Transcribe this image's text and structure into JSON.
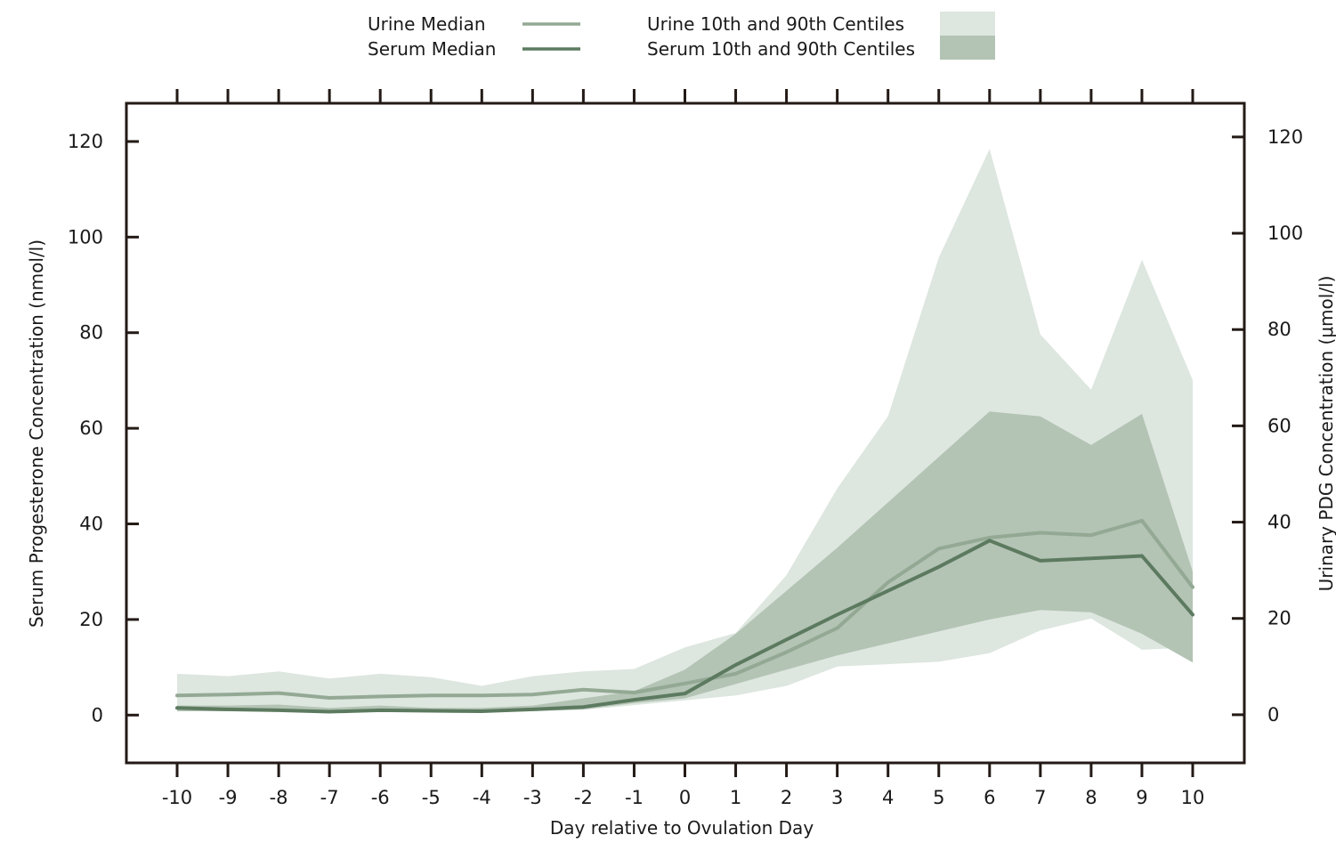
{
  "chart_data": {
    "type": "line",
    "title": "",
    "xlabel": "Day relative to Ovulation Day",
    "ylabel_left": "Serum Progesterone Concentration (nmol/l)",
    "ylabel_right": "Urinary PDG Concentration (μmol/l)",
    "x": [
      -10,
      -9,
      -8,
      -7,
      -6,
      -5,
      -4,
      -3,
      -2,
      -1,
      0,
      1,
      2,
      3,
      4,
      5,
      6,
      7,
      8,
      9,
      10
    ],
    "x_tick_labels": [
      "-10",
      "-9",
      "-8",
      "-7",
      "-6",
      "-5",
      "-4",
      "-3",
      "-2",
      "-1",
      "0",
      "1",
      "2",
      "3",
      "4",
      "5",
      "6",
      "7",
      "8",
      "9",
      "10"
    ],
    "ylim": [
      -10,
      128
    ],
    "y_ticks": [
      0,
      20,
      40,
      60,
      80,
      100,
      120
    ],
    "y_tick_labels": [
      "0",
      "20",
      "40",
      "60",
      "80",
      "100",
      "120"
    ],
    "ylim_right": [
      -10,
      127
    ],
    "y_ticks_right": [
      0,
      20,
      40,
      60,
      80,
      100,
      120
    ],
    "y_tick_labels_right": [
      "0",
      "20",
      "40",
      "60",
      "80",
      "100",
      "120"
    ],
    "grid": false,
    "legend_position": "top-center",
    "series": [
      {
        "name": "Urine Median",
        "kind": "line",
        "axis": "right",
        "color": "#93a994",
        "values": [
          4.0,
          4.2,
          4.5,
          3.5,
          3.8,
          4.0,
          4.0,
          4.2,
          5.2,
          4.6,
          6.5,
          8.5,
          13.0,
          18.0,
          27.5,
          34.5,
          36.8,
          37.8,
          37.3,
          40.3,
          26.5
        ]
      },
      {
        "name": "Serum Median",
        "kind": "line",
        "axis": "left",
        "color": "#5c7a5f",
        "values": [
          1.5,
          1.2,
          1.0,
          0.7,
          1.0,
          0.9,
          0.8,
          1.2,
          1.7,
          3.2,
          4.5,
          10.5,
          15.8,
          21.0,
          26.0,
          31.0,
          36.5,
          32.3,
          32.8,
          33.3,
          21.0
        ]
      },
      {
        "name": "Urine 10th and 90th Centiles",
        "kind": "band",
        "axis": "right",
        "color": "#dde6df",
        "lower": [
          1.0,
          1.0,
          1.0,
          0.8,
          0.8,
          0.8,
          0.8,
          0.8,
          1.0,
          2.0,
          3.0,
          4.0,
          6.0,
          10.0,
          10.5,
          11.0,
          12.8,
          17.5,
          20.0,
          13.5,
          14.0
        ],
        "upper": [
          8.5,
          8.0,
          9.0,
          7.5,
          8.5,
          7.8,
          6.0,
          8.0,
          9.0,
          9.5,
          14.0,
          17.0,
          29.0,
          47.0,
          62.0,
          95.0,
          117.5,
          79.0,
          67.5,
          94.5,
          69.5
        ]
      },
      {
        "name": "Serum 10th and 90th Centiles",
        "kind": "band",
        "axis": "left",
        "color": "#b3c3b4",
        "lower": [
          0.8,
          0.8,
          0.7,
          0.5,
          0.7,
          0.7,
          0.6,
          0.8,
          1.2,
          2.5,
          3.5,
          6.5,
          9.5,
          12.5,
          15.0,
          17.5,
          20.0,
          22.0,
          21.5,
          17.0,
          11.0
        ],
        "upper": [
          2.0,
          2.0,
          2.2,
          1.5,
          2.0,
          1.5,
          1.5,
          2.0,
          3.5,
          5.0,
          9.5,
          17.0,
          26.0,
          35.0,
          44.5,
          54.0,
          63.5,
          62.5,
          56.5,
          63.0,
          30.0
        ]
      }
    ]
  }
}
